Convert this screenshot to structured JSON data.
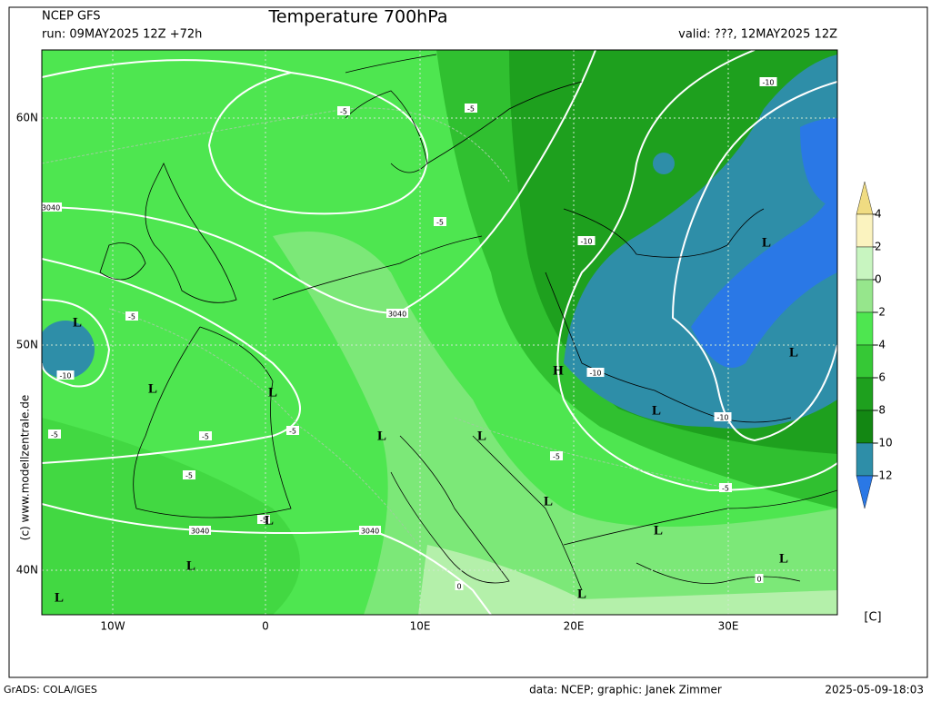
{
  "header": {
    "model": "NCEP GFS",
    "run": "run: 09MAY2025 12Z +72h",
    "title": "Temperature 700hPa",
    "valid": "valid: ???, 12MAY2025 12Z"
  },
  "axes": {
    "lat_labels": [
      "60N",
      "50N",
      "40N"
    ],
    "lon_labels": [
      "10W",
      "0",
      "10E",
      "20E",
      "30E"
    ]
  },
  "colorbar": {
    "labels": [
      "4",
      "2",
      "0",
      "-2",
      "-4",
      "-6",
      "-8",
      "-10",
      "-12"
    ],
    "colors": [
      "#f0dc82",
      "#fbf3bf",
      "#c8f5c0",
      "#96e68c",
      "#4ee650",
      "#36c836",
      "#1ea01e",
      "#138713",
      "#2e8ea8",
      "#2a78e6"
    ],
    "unit": "[C]"
  },
  "credit": "(c) www.modellzentrale.de",
  "footer": {
    "left": "GrADS: COLA/IGES",
    "center": "data: NCEP; graphic: Janek Zimmer",
    "right": "2025-05-09-18:03"
  },
  "map_labels": [
    "3040",
    "3040",
    "3040",
    "3040",
    "-5",
    "-5",
    "-5",
    "-5",
    "-5",
    "-5",
    "-5",
    "-5",
    "-5",
    "-5",
    "-5",
    "-10",
    "-10",
    "-10",
    "-10",
    "-10",
    "0",
    "0",
    "L",
    "L",
    "L",
    "L",
    "L",
    "L",
    "L",
    "L",
    "L",
    "L",
    "L",
    "L",
    "L",
    "L",
    "L",
    "H"
  ]
}
